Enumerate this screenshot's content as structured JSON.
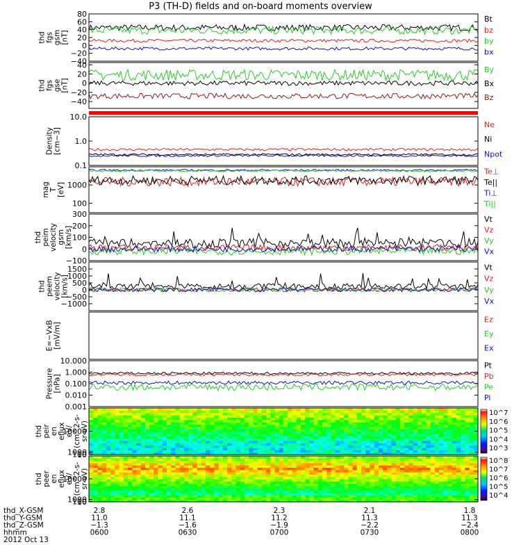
{
  "title": "P3 (TH-D) fields and on-board moments overview",
  "colors": {
    "black": "#000000",
    "red": "#e02020",
    "green": "#20d020",
    "blue": "#1010c0",
    "dark_red": "#8b1a1a",
    "bright_green": "#00ff00"
  },
  "chart_data": [
    {
      "type": "line",
      "panel": "fgs_gsm",
      "ylabel": [
        "thd",
        "fgs",
        "gsm",
        "[nT]"
      ],
      "ylim": [
        -40,
        80
      ],
      "ticks": [
        -40,
        -20,
        0,
        20,
        40,
        60,
        80
      ],
      "tick_labels": [
        "−40",
        "−20",
        "0",
        "20",
        "40",
        "60",
        "80"
      ],
      "series": [
        {
          "name": "Bt",
          "color": "#000000",
          "base": 45,
          "amp": 8,
          "spike": 0
        },
        {
          "name": "bz",
          "color": "#e02020",
          "base": 12,
          "amp": 4,
          "spike": 0
        },
        {
          "name": "by",
          "color": "#20d020",
          "base": 38,
          "amp": 10,
          "spike": 0
        },
        {
          "name": "bx",
          "color": "#1010c0",
          "base": -8,
          "amp": 4,
          "spike": 0
        }
      ]
    },
    {
      "type": "line",
      "panel": "fgs_gse",
      "ylabel": [
        "thd",
        "fgs",
        "gse",
        "[nT]"
      ],
      "ylim": [
        -55,
        45
      ],
      "ticks": [
        -40,
        -20,
        0,
        20,
        40
      ],
      "tick_labels": [
        "−40",
        "−20",
        "0",
        "20",
        "40"
      ],
      "series": [
        {
          "name": "By",
          "color": "#20d020",
          "base": 18,
          "amp": 12,
          "spike": 0
        },
        {
          "name": "Bx",
          "color": "#000000",
          "base": 0,
          "amp": 5,
          "spike": 0
        },
        {
          "name": "Bz",
          "color": "#8b1a1a",
          "base": -28,
          "amp": 6,
          "spike": 0
        }
      ]
    },
    {
      "type": "line",
      "panel": "density",
      "ylabel": [
        "Density",
        "[cm−3]"
      ],
      "log": true,
      "ylim": [
        0.1,
        10.0
      ],
      "ticks": [
        0.1,
        1.0,
        10.0
      ],
      "tick_labels": [
        "0.1",
        "1.0",
        "10.0"
      ],
      "series": [
        {
          "name": "Ne",
          "color": "#e02020",
          "base": 0.45,
          "amp": 0.1,
          "spike": 0
        },
        {
          "name": "Ni",
          "color": "#000000",
          "base": 0.28,
          "amp": 0.08,
          "spike": 0
        },
        {
          "name": "Npot",
          "color": "#1010c0",
          "base": 0.25,
          "amp": 0.08,
          "spike": 0
        }
      ]
    },
    {
      "type": "line",
      "panel": "temperature",
      "ylabel": [
        "mag",
        "T",
        "[eV]"
      ],
      "log": true,
      "ylim": [
        30,
        10000
      ],
      "ticks": [
        100,
        1000
      ],
      "tick_labels": [
        "100",
        "1000"
      ],
      "series": [
        {
          "name": "Te⊥",
          "color": "#e02020",
          "base": 1500,
          "amp": 0.5,
          "spike": 0
        },
        {
          "name": "Te||",
          "color": "#000000",
          "base": 1800,
          "amp": 0.5,
          "spike": 0
        },
        {
          "name": "Ti⊥",
          "color": "#1010c0",
          "base": 6500,
          "amp": 0.1,
          "spike": 0
        },
        {
          "name": "Ti||",
          "color": "#20d020",
          "base": 6000,
          "amp": 0.1,
          "spike": 0
        }
      ]
    },
    {
      "type": "line",
      "panel": "peim_velocity",
      "ylabel": [
        "thd",
        "peim",
        "velocity",
        "gsm",
        "[km/s]"
      ],
      "ylim": [
        -100,
        300
      ],
      "ticks": [
        -100,
        0,
        100,
        200,
        300
      ],
      "tick_labels": [
        "−100",
        "0",
        "100",
        "200",
        "300"
      ],
      "series": [
        {
          "name": "Vt",
          "color": "#000000",
          "base": 50,
          "amp": 40,
          "spike": 120
        },
        {
          "name": "Vz",
          "color": "#e02020",
          "base": 10,
          "amp": 30,
          "spike": 0
        },
        {
          "name": "Vy",
          "color": "#20d020",
          "base": -20,
          "amp": 30,
          "spike": 0
        },
        {
          "name": "Vx",
          "color": "#1010c0",
          "base": 0,
          "amp": 25,
          "spike": 0
        }
      ]
    },
    {
      "type": "line",
      "panel": "peem_velocity",
      "ylabel": [
        "thd",
        "peem",
        "velocity",
        "[km/s]"
      ],
      "ylim": [
        -1500,
        2000
      ],
      "ticks": [
        -1000,
        -500,
        0,
        500,
        1000,
        1500
      ],
      "tick_labels": [
        "−1000",
        "−500",
        "0",
        "500",
        "1000",
        "1500"
      ],
      "series": [
        {
          "name": "Vt",
          "color": "#000000",
          "base": 250,
          "amp": 200,
          "spike": 800
        },
        {
          "name": "Vz",
          "color": "#e02020",
          "base": 0,
          "amp": 150,
          "spike": 0
        },
        {
          "name": "Vy",
          "color": "#20d020",
          "base": 0,
          "amp": 150,
          "spike": 0
        },
        {
          "name": "Vx",
          "color": "#1010c0",
          "base": 0,
          "amp": 150,
          "spike": 0
        }
      ]
    },
    {
      "type": "line",
      "panel": "efield",
      "ylabel": [
        "E=−VxB",
        "[mV/m]"
      ],
      "ylim": [
        0,
        1
      ],
      "ticks": [],
      "tick_labels": [],
      "series": [
        {
          "name": "Ez",
          "color": "#e02020",
          "empty": true
        },
        {
          "name": "Ey",
          "color": "#20d020",
          "empty": true
        },
        {
          "name": "Ex",
          "color": "#1010c0",
          "empty": true
        }
      ]
    },
    {
      "type": "line",
      "panel": "pressure",
      "ylabel": [
        "Pressure",
        "[nPa]"
      ],
      "log": true,
      "ylim": [
        0.001,
        10.0
      ],
      "ticks": [
        0.001,
        0.01,
        0.1,
        1.0,
        10.0
      ],
      "tick_labels": [
        "0.001",
        "0.010",
        "0.100",
        "1.000",
        "10.000"
      ],
      "series": [
        {
          "name": "Pt",
          "color": "#000000",
          "base": 0.8,
          "amp": 0.2,
          "spike": 0
        },
        {
          "name": "Pb",
          "color": "#e02020",
          "base": 0.6,
          "amp": 0.2,
          "spike": 0
        },
        {
          "name": "Pe",
          "color": "#20d020",
          "base": 0.05,
          "amp": 0.6,
          "spike": 0
        },
        {
          "name": "Pi",
          "color": "#1010c0",
          "base": 0.12,
          "amp": 0.3,
          "spike": 0
        }
      ]
    },
    {
      "type": "heatmap",
      "panel": "ion_spectrogram",
      "ylabel": [
        "thd",
        "peir",
        "en",
        "eflux",
        "eV/",
        "(cm^2-s-",
        "sr-eV)"
      ],
      "ylim": [
        10,
        20000
      ],
      "ticks": [
        10,
        100,
        1000,
        10000
      ],
      "tick_labels": [
        "10",
        "100",
        "1000",
        "10000"
      ],
      "colorbar": {
        "labels": [
          "10^7",
          "10^6",
          "10^5",
          "10^4",
          "10^3"
        ]
      }
    },
    {
      "type": "heatmap",
      "panel": "electron_spectrogram",
      "ylabel": [
        "thd",
        "peer",
        "en",
        "eflux",
        "eV/",
        "(cm^2-s-",
        "sr-eV)"
      ],
      "ylim": [
        8,
        20000
      ],
      "ticks": [
        10,
        100,
        1000,
        10000
      ],
      "tick_labels": [
        "10",
        "100",
        "1000",
        "10000"
      ],
      "colorbar": {
        "labels": [
          "10^8",
          "10^7",
          "10^6",
          "10^5",
          "10^4"
        ]
      }
    }
  ],
  "ephemeris": {
    "rows": [
      {
        "label": "thd_X-GSM",
        "values": [
          "2.8",
          "2.6",
          "2.3",
          "2.1",
          "1.8"
        ]
      },
      {
        "label": "thd_Y-GSM",
        "values": [
          "11.0",
          "11.1",
          "11.2",
          "11.3",
          "11.3"
        ]
      },
      {
        "label": "thd_Z-GSM",
        "values": [
          "−1.3",
          "−1.6",
          "−1.9",
          "−2.2",
          "−2.4"
        ]
      },
      {
        "label": "hhmm",
        "values": [
          "0600",
          "0630",
          "0700",
          "0730",
          "0800"
        ]
      }
    ],
    "date": "2012 Oct 13"
  }
}
